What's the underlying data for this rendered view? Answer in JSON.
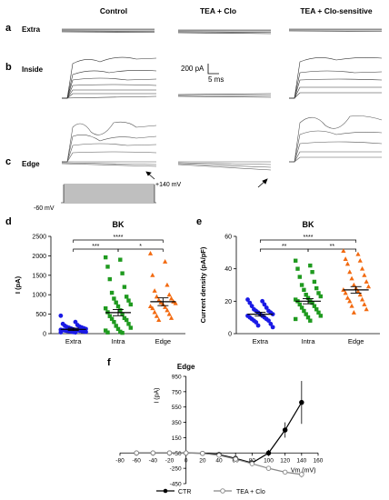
{
  "columns": [
    "Control",
    "TEA + Clo",
    "TEA + Clo-sensitive"
  ],
  "panels": {
    "a": {
      "letter": "a",
      "row_label": "Extra"
    },
    "b": {
      "letter": "b",
      "row_label": "Inside"
    },
    "c": {
      "letter": "c",
      "row_label": "Edge"
    },
    "d": {
      "letter": "d"
    },
    "e": {
      "letter": "e"
    },
    "f": {
      "letter": "f"
    }
  },
  "scalebar": {
    "current": "200 pA",
    "time": "5 ms"
  },
  "protocol": {
    "top": "+140 mV",
    "bottom": "-60 mV"
  },
  "colors": {
    "extra": "#1a1ae6",
    "intra": "#1f9a1f",
    "edge": "#f26a10",
    "ctr": "#000000",
    "tea": "#888888"
  },
  "chart_data": [
    {
      "type": "scatter",
      "title": "BK",
      "ylabel": "I (pA)",
      "categories": [
        "Extra",
        "Intra",
        "Edge"
      ],
      "ylim": [
        0,
        2500
      ],
      "yticks": [
        "0",
        "500",
        "1000",
        "1500",
        "2000",
        "2500"
      ],
      "means": [
        110,
        540,
        820
      ],
      "sem": [
        30,
        80,
        100
      ],
      "series": [
        {
          "values": [
            460,
            300,
            250,
            220,
            200,
            180,
            170,
            160,
            150,
            140,
            130,
            120,
            110,
            100,
            95,
            90,
            85,
            80,
            75,
            70,
            65,
            60,
            55,
            50,
            45,
            40,
            35,
            30
          ]
        },
        {
          "values": [
            1960,
            1900,
            1720,
            1550,
            1400,
            1200,
            1050,
            950,
            900,
            850,
            800,
            750,
            700,
            650,
            600,
            550,
            500,
            450,
            400,
            380,
            350,
            300,
            250,
            200,
            150,
            120,
            80,
            50,
            30,
            20
          ]
        },
        {
          "values": [
            2060,
            1850,
            1500,
            1250,
            1100,
            1000,
            950,
            900,
            860,
            820,
            800,
            780,
            750,
            700,
            680,
            650,
            600,
            550,
            500,
            450,
            400,
            350
          ]
        }
      ],
      "significance": [
        {
          "from": 0,
          "to": 1,
          "label": "***"
        },
        {
          "from": 1,
          "to": 2,
          "label": "*"
        },
        {
          "from": 0,
          "to": 2,
          "label": "****"
        }
      ]
    },
    {
      "type": "scatter",
      "title": "BK",
      "ylabel": "Current density (pA/pF)",
      "categories": [
        "Extra",
        "Intra",
        "Edge"
      ],
      "ylim": [
        0,
        60
      ],
      "yticks": [
        "0",
        "20",
        "40",
        "60"
      ],
      "means": [
        12,
        20,
        27
      ],
      "sem": [
        1.2,
        1.6,
        2.0
      ],
      "series": [
        {
          "values": [
            21,
            20,
            19,
            18,
            17,
            16,
            15,
            14,
            14,
            13,
            13,
            12,
            12,
            11,
            11,
            10,
            10,
            9,
            9,
            8,
            8,
            7,
            6,
            5,
            4
          ]
        },
        {
          "values": [
            45,
            42,
            40,
            38,
            35,
            32,
            30,
            28,
            27,
            25,
            24,
            23,
            22,
            21,
            20,
            20,
            19,
            18,
            17,
            16,
            15,
            14,
            13,
            12,
            11,
            10,
            9,
            8
          ]
        },
        {
          "values": [
            51,
            49,
            46,
            45,
            43,
            40,
            38,
            36,
            34,
            32,
            30,
            29,
            28,
            27,
            26,
            25,
            24,
            22,
            21,
            20,
            18,
            17,
            15,
            13
          ]
        }
      ],
      "significance": [
        {
          "from": 0,
          "to": 1,
          "label": "**"
        },
        {
          "from": 1,
          "to": 2,
          "label": "**"
        },
        {
          "from": 0,
          "to": 2,
          "label": "****"
        }
      ]
    },
    {
      "type": "line",
      "title": "Edge",
      "xlabel": "Vm (mV)",
      "ylabel": "I (pA)",
      "xlim": [
        -80,
        160
      ],
      "ylim": [
        -450,
        950
      ],
      "xticks": [
        "-80",
        "-60",
        "-40",
        "-20",
        "0",
        "20",
        "40",
        "60",
        "80",
        "100",
        "120",
        "140",
        "160"
      ],
      "yticks": [
        "-450",
        "-250",
        "-50",
        "150",
        "350",
        "550",
        "750",
        "950"
      ],
      "series": [
        {
          "name": "CTR",
          "x": [
            -60,
            -40,
            -20,
            0,
            20,
            40,
            60,
            80,
            100,
            120,
            140
          ],
          "y": [
            -50,
            -50,
            -50,
            -50,
            -55,
            -70,
            -120,
            -180,
            -50,
            250,
            610
          ],
          "err": [
            0,
            0,
            0,
            0,
            0,
            0,
            10,
            20,
            40,
            100,
            280
          ]
        },
        {
          "name": "TEA + Clo",
          "x": [
            -60,
            -40,
            -20,
            0,
            20,
            40,
            60,
            80,
            100,
            120,
            140
          ],
          "y": [
            -50,
            -50,
            -50,
            -50,
            -55,
            -80,
            -130,
            -190,
            -250,
            -300,
            -330
          ],
          "err": [
            0,
            0,
            0,
            0,
            0,
            5,
            10,
            15,
            20,
            30,
            40
          ]
        }
      ]
    }
  ]
}
